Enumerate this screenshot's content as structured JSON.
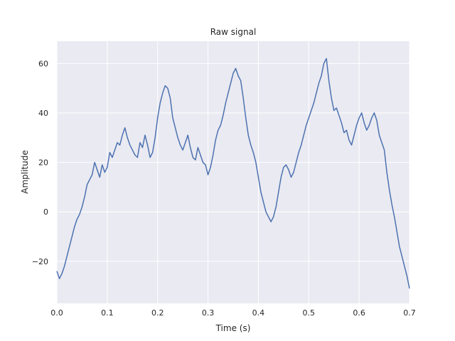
{
  "chart_data": {
    "type": "line",
    "title": "Raw signal",
    "xlabel": "Time (s)",
    "ylabel": "Amplitude",
    "xlim": [
      0,
      0.7
    ],
    "ylim": [
      -37,
      69
    ],
    "xticks": [
      0.0,
      0.1,
      0.2,
      0.3,
      0.4,
      0.5,
      0.6,
      0.7
    ],
    "xtick_labels": [
      "0.0",
      "0.1",
      "0.2",
      "0.3",
      "0.4",
      "0.5",
      "0.6",
      "0.7"
    ],
    "yticks": [
      -20,
      0,
      20,
      40,
      60
    ],
    "ytick_labels": [
      "−20",
      "0",
      "20",
      "40",
      "60"
    ],
    "grid": true,
    "background": "#eaeaf2",
    "gridcolor": "#ffffff",
    "line_color": "#4c72b0",
    "series": [
      {
        "x": [
          0.0,
          0.005,
          0.01,
          0.015,
          0.02,
          0.025,
          0.03,
          0.035,
          0.04,
          0.045,
          0.05,
          0.055,
          0.06,
          0.065,
          0.07,
          0.075,
          0.08,
          0.085,
          0.09,
          0.095,
          0.1,
          0.105,
          0.11,
          0.115,
          0.12,
          0.125,
          0.13,
          0.135,
          0.14,
          0.145,
          0.15,
          0.155,
          0.16,
          0.165,
          0.17,
          0.175,
          0.18,
          0.185,
          0.19,
          0.195,
          0.2,
          0.205,
          0.21,
          0.215,
          0.22,
          0.225,
          0.23,
          0.235,
          0.24,
          0.245,
          0.25,
          0.255,
          0.26,
          0.265,
          0.27,
          0.275,
          0.28,
          0.285,
          0.29,
          0.295,
          0.3,
          0.305,
          0.31,
          0.315,
          0.32,
          0.325,
          0.33,
          0.335,
          0.34,
          0.345,
          0.35,
          0.355,
          0.36,
          0.365,
          0.37,
          0.375,
          0.38,
          0.385,
          0.39,
          0.395,
          0.4,
          0.405,
          0.41,
          0.415,
          0.42,
          0.425,
          0.43,
          0.435,
          0.44,
          0.445,
          0.45,
          0.455,
          0.46,
          0.465,
          0.47,
          0.475,
          0.48,
          0.485,
          0.49,
          0.495,
          0.5,
          0.505,
          0.51,
          0.515,
          0.52,
          0.525,
          0.53,
          0.535,
          0.54,
          0.545,
          0.55,
          0.555,
          0.56,
          0.565,
          0.57,
          0.575,
          0.58,
          0.585,
          0.59,
          0.595,
          0.6,
          0.605,
          0.61,
          0.615,
          0.62,
          0.625,
          0.63,
          0.635,
          0.64,
          0.645,
          0.65,
          0.655,
          0.66,
          0.665,
          0.67,
          0.675,
          0.68,
          0.685,
          0.69,
          0.695,
          0.7
        ],
        "y": [
          -24,
          -27,
          -25,
          -22,
          -18,
          -14,
          -10,
          -6,
          -3,
          -1,
          2,
          6,
          11,
          13,
          15,
          20,
          17,
          14,
          19,
          16,
          18,
          24,
          22,
          25,
          28,
          27,
          31,
          34,
          30,
          27,
          25,
          23,
          22,
          28,
          26,
          31,
          27,
          22,
          24,
          30,
          38,
          44,
          48,
          51,
          50,
          46,
          38,
          34,
          30,
          27,
          25,
          28,
          31,
          26,
          22,
          21,
          26,
          23,
          20,
          19,
          15,
          18,
          23,
          29,
          33,
          35,
          39,
          44,
          48,
          52,
          56,
          58,
          55,
          53,
          46,
          38,
          31,
          27,
          24,
          20,
          14,
          8,
          4,
          0,
          -2,
          -4,
          -2,
          2,
          8,
          14,
          18,
          19,
          17,
          14,
          16,
          20,
          24,
          27,
          31,
          35,
          38,
          41,
          44,
          48,
          52,
          55,
          60,
          62,
          53,
          46,
          41,
          42,
          39,
          36,
          32,
          33,
          29,
          27,
          31,
          35,
          38,
          40,
          36,
          33,
          35,
          38,
          40,
          37,
          31,
          28,
          25,
          16,
          9,
          3,
          -2,
          -8,
          -14,
          -18,
          -22,
          -26,
          -31
        ]
      }
    ]
  }
}
